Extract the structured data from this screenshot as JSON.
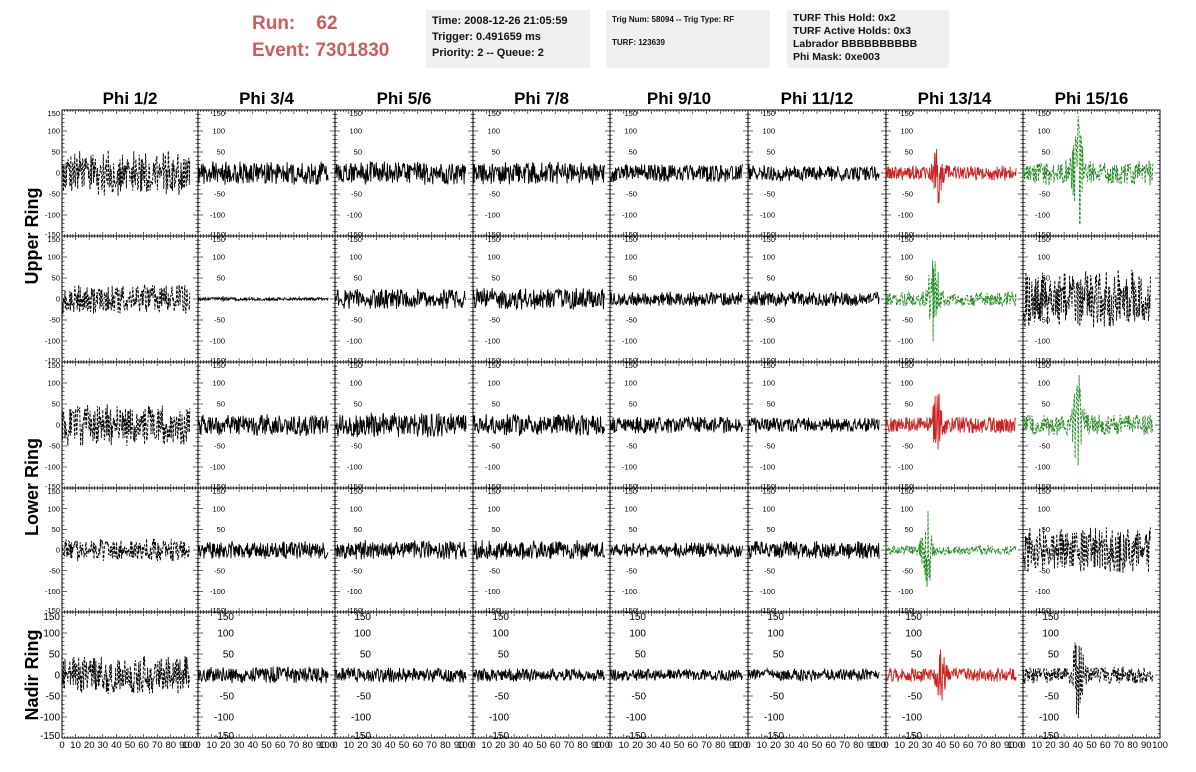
{
  "header": {
    "run_label": "Run:",
    "run_value": "62",
    "event_label": "Event:",
    "event_value": "7301830",
    "time": "Time: 2008-12-26 21:05:59",
    "trigger": "Trigger: 0.491659 ms",
    "priority": "Priority: 2 -- Queue: 2",
    "trig_num": "Trig Num: 58094 -- Trig Type: RF",
    "turf": "TURF: 123639",
    "turf_this_hold": "TURF This Hold: 0x2",
    "turf_active_holds": "TURF Active Holds: 0x3",
    "labrador": "Labrador BBBBBBBBBB",
    "phi_mask": "Phi Mask: 0xe003"
  },
  "colors": {
    "accent_red": "#cd5c5c",
    "trace_black": "#000000",
    "trace_red": "#cc2222",
    "trace_green": "#228b22",
    "info_bg": "#f0f0f0"
  },
  "chart_data": {
    "type": "line",
    "columns": [
      "Phi 1/2",
      "Phi 3/4",
      "Phi 5/6",
      "Phi 7/8",
      "Phi 9/10",
      "Phi 11/12",
      "Phi 13/14",
      "Phi 15/16"
    ],
    "ring_labels": [
      {
        "label": "Upper Ring",
        "rows": [
          0,
          1
        ]
      },
      {
        "label": "Lower Ring",
        "rows": [
          2,
          3
        ]
      },
      {
        "label": "Nadir Ring",
        "rows": [
          4
        ]
      }
    ],
    "xlim": [
      0,
      100
    ],
    "ylim": [
      -150,
      150
    ],
    "x_ticks": [
      "0",
      "10",
      "20",
      "30",
      "40",
      "50",
      "60",
      "70",
      "80",
      "90",
      "100"
    ],
    "y_ticks": [
      "150",
      "100",
      "50",
      "0",
      "-50",
      "-100",
      "-150"
    ],
    "panels": [
      [
        {
          "color": "black",
          "style": "dashed",
          "amp": 55,
          "end": 94,
          "burst": null
        },
        {
          "color": "black",
          "style": "solid",
          "amp": 28,
          "end": 95,
          "burst": null
        },
        {
          "color": "black",
          "style": "solid",
          "amp": 28,
          "end": 95,
          "burst": null
        },
        {
          "color": "black",
          "style": "solid",
          "amp": 28,
          "end": 96,
          "burst": null
        },
        {
          "color": "black",
          "style": "solid",
          "amp": 22,
          "end": 96,
          "burst": null
        },
        {
          "color": "black",
          "style": "solid",
          "amp": 20,
          "end": 95,
          "burst": null
        },
        {
          "color": "red",
          "style": "solid",
          "amp": 18,
          "end": 95,
          "burst": {
            "center": 38,
            "peak": 60
          }
        },
        {
          "color": "green",
          "style": "dashed",
          "amp": 30,
          "end": 95,
          "burst": {
            "center": 40,
            "peak": 145
          }
        }
      ],
      [
        {
          "color": "black",
          "style": "dashed",
          "amp": 35,
          "end": 94,
          "burst": null
        },
        {
          "color": "black",
          "style": "solid",
          "amp": 4,
          "end": 95,
          "burst": null
        },
        {
          "color": "black",
          "style": "solid",
          "amp": 24,
          "end": 95,
          "burst": null
        },
        {
          "color": "black",
          "style": "solid",
          "amp": 26,
          "end": 96,
          "burst": null
        },
        {
          "color": "black",
          "style": "solid",
          "amp": 18,
          "end": 96,
          "burst": null
        },
        {
          "color": "black",
          "style": "solid",
          "amp": 18,
          "end": 95,
          "burst": null
        },
        {
          "color": "green",
          "style": "dashed",
          "amp": 18,
          "end": 95,
          "burst": {
            "center": 35,
            "peak": 120
          }
        },
        {
          "color": "black",
          "style": "dashed",
          "amp": 70,
          "end": 93,
          "burst": null
        }
      ],
      [
        {
          "color": "black",
          "style": "dashed",
          "amp": 50,
          "end": 94,
          "burst": null
        },
        {
          "color": "black",
          "style": "solid",
          "amp": 26,
          "end": 95,
          "burst": null
        },
        {
          "color": "black",
          "style": "solid",
          "amp": 30,
          "end": 95,
          "burst": null
        },
        {
          "color": "black",
          "style": "solid",
          "amp": 26,
          "end": 96,
          "burst": null
        },
        {
          "color": "black",
          "style": "solid",
          "amp": 20,
          "end": 96,
          "burst": null
        },
        {
          "color": "black",
          "style": "solid",
          "amp": 18,
          "end": 95,
          "burst": null
        },
        {
          "color": "red",
          "style": "solid",
          "amp": 20,
          "end": 95,
          "burst": {
            "center": 38,
            "peak": 80
          }
        },
        {
          "color": "green",
          "style": "dashed",
          "amp": 25,
          "end": 95,
          "burst": {
            "center": 40,
            "peak": 110
          }
        }
      ],
      [
        {
          "color": "black",
          "style": "dashed",
          "amp": 28,
          "end": 94,
          "burst": null
        },
        {
          "color": "black",
          "style": "solid",
          "amp": 22,
          "end": 95,
          "burst": null
        },
        {
          "color": "black",
          "style": "solid",
          "amp": 24,
          "end": 95,
          "burst": null
        },
        {
          "color": "black",
          "style": "solid",
          "amp": 24,
          "end": 96,
          "burst": null
        },
        {
          "color": "black",
          "style": "solid",
          "amp": 18,
          "end": 96,
          "burst": null
        },
        {
          "color": "black",
          "style": "solid",
          "amp": 22,
          "end": 95,
          "burst": null
        },
        {
          "color": "green",
          "style": "dashed",
          "amp": 12,
          "end": 95,
          "burst": {
            "center": 30,
            "peak": 90
          }
        },
        {
          "color": "black",
          "style": "dashed",
          "amp": 55,
          "end": 93,
          "burst": null
        }
      ],
      [
        {
          "color": "black",
          "style": "dashed",
          "amp": 45,
          "end": 94,
          "burst": null
        },
        {
          "color": "black",
          "style": "solid",
          "amp": 20,
          "end": 95,
          "burst": null
        },
        {
          "color": "black",
          "style": "solid",
          "amp": 18,
          "end": 95,
          "burst": null
        },
        {
          "color": "black",
          "style": "solid",
          "amp": 16,
          "end": 96,
          "burst": null
        },
        {
          "color": "black",
          "style": "solid",
          "amp": 14,
          "end": 96,
          "burst": null
        },
        {
          "color": "black",
          "style": "solid",
          "amp": 16,
          "end": 95,
          "burst": null
        },
        {
          "color": "red",
          "style": "solid",
          "amp": 18,
          "end": 95,
          "burst": {
            "center": 40,
            "peak": 60
          }
        },
        {
          "color": "black",
          "style": "dashed",
          "amp": 20,
          "end": 95,
          "burst": {
            "center": 40,
            "peak": 120
          }
        }
      ]
    ]
  }
}
